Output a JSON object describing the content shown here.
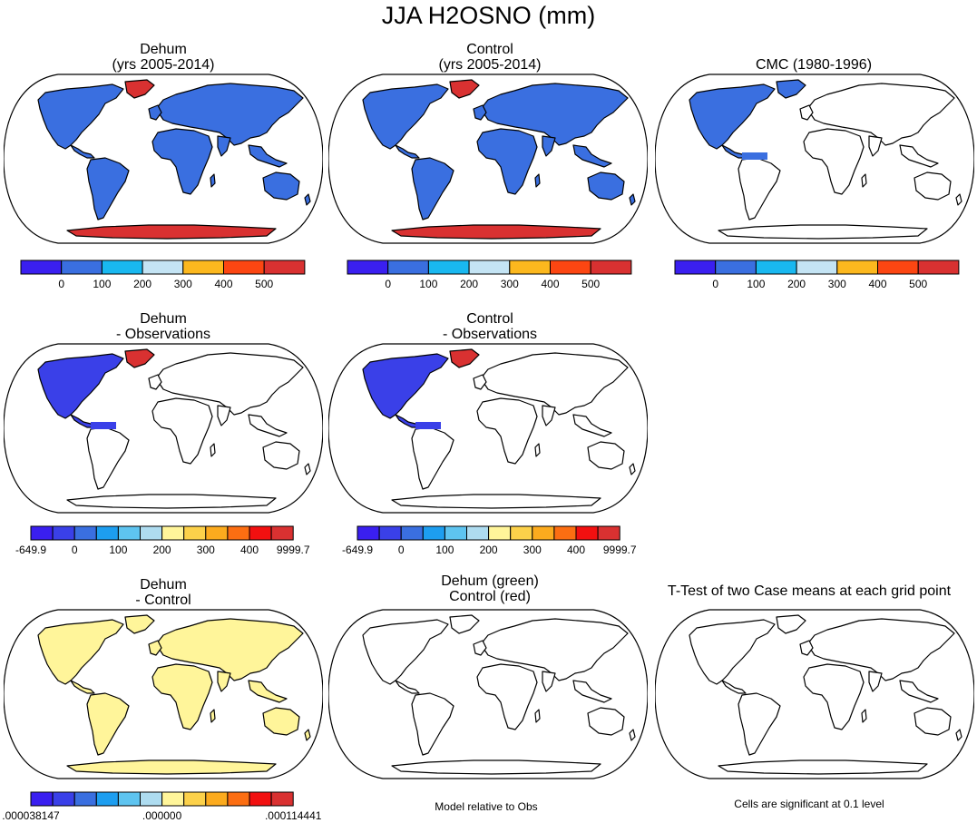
{
  "figure": {
    "title": "JJA H2OSNO (mm)",
    "note_model_relative": "Model relative to Obs",
    "note_significance": "Cells are significant at 0.1 level"
  },
  "colors": {
    "abs_levels": [
      "#3a1ff0",
      "#3a6fe0",
      "#19b8f0",
      "#c4e4f4",
      "#fcb81e",
      "#fc4612",
      "#d93131"
    ],
    "diff_levels": [
      "#3a1ff0",
      "#3a40e8",
      "#3a6fe0",
      "#1d9ef0",
      "#5ec4f0",
      "#aedcf0",
      "#fff59a",
      "#fcd14a",
      "#fcab1e",
      "#fc6e12",
      "#f21010",
      "#d93131"
    ],
    "land": "#ffffff",
    "coast": "#000000"
  },
  "panels": [
    {
      "id": "dehum",
      "title_line1": "Dehum",
      "title_line2": "(yrs 2005-2014)",
      "fill": "abs",
      "base_color": "#3a6fe0",
      "hot_color": "#d93131"
    },
    {
      "id": "control",
      "title_line1": "Control",
      "title_line2": "(yrs 2005-2014)",
      "fill": "abs",
      "base_color": "#3a6fe0",
      "hot_color": "#d93131"
    },
    {
      "id": "cmc",
      "title_line1": "CMC (1980-1996)",
      "title_line2": "",
      "fill": "na",
      "base_color": "#3a6fe0",
      "hot_color": "#3a6fe0"
    },
    {
      "id": "dehum-obs",
      "title_line1": "Dehum",
      "title_line2": "- Observations",
      "fill": "na",
      "base_color": "#3a40e8",
      "hot_color": "#d93131"
    },
    {
      "id": "control-obs",
      "title_line1": "Control",
      "title_line2": "- Observations",
      "fill": "na",
      "base_color": "#3a40e8",
      "hot_color": "#d93131"
    },
    {
      "id": "dehum-control",
      "title_line1": "Dehum",
      "title_line2": "- Control",
      "fill": "diff",
      "base_color": "#fff59a",
      "hot_color": "#fff59a"
    },
    {
      "id": "green-red",
      "title_line1": "Dehum (green)",
      "title_line2": "Control (red)",
      "fill": "none",
      "base_color": "#ffffff",
      "hot_color": "#ffffff"
    },
    {
      "id": "ttest",
      "title_line1": "T-Test of two Case means at each grid point",
      "title_line2": "",
      "fill": "none",
      "base_color": "#ffffff",
      "hot_color": "#ffffff"
    }
  ],
  "colorbars": {
    "absolute": {
      "labels": [
        "0",
        "100",
        "200",
        "300",
        "400",
        "500"
      ]
    },
    "difference": {
      "labels": [
        "-649.9",
        "0",
        "100",
        "200",
        "300",
        "400",
        "9999.7"
      ]
    },
    "dehum_control": {
      "labels": [
        ".000038147",
        ".000000",
        ".000114441"
      ]
    }
  }
}
